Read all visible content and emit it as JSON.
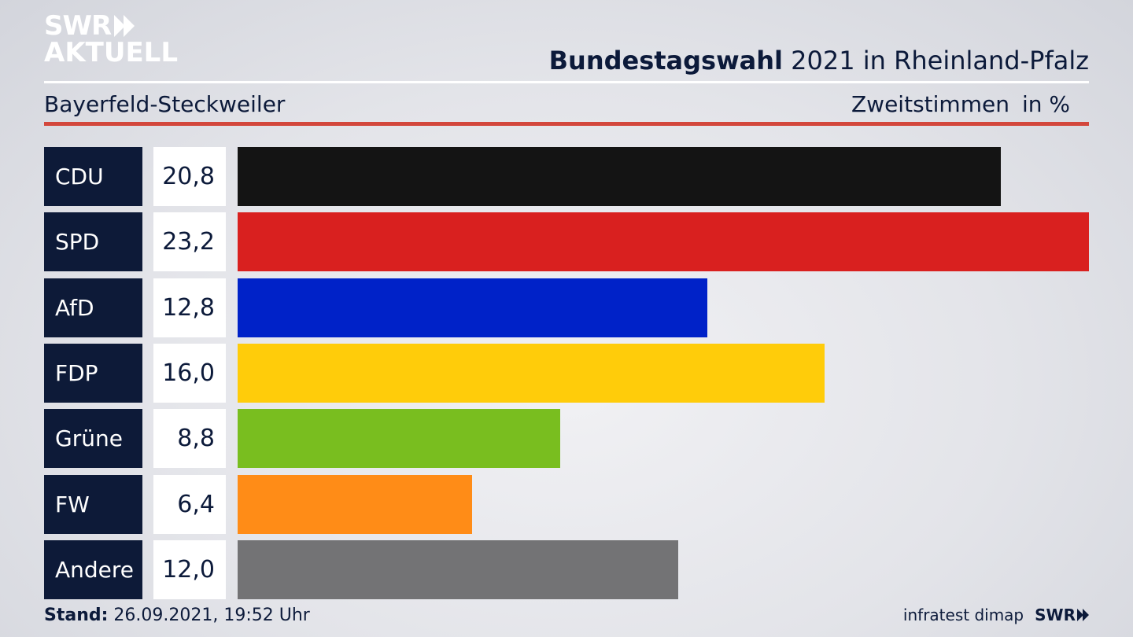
{
  "brand": {
    "logo_line1": "SWR",
    "logo_line2": "AKTUELL"
  },
  "header": {
    "title_bold": "Bundestagswahl",
    "title_rest": "2021 in Rheinland-Pfalz",
    "region": "Bayerfeld-Steckweiler",
    "measure": "Zweitstimmen",
    "unit": "in %"
  },
  "chart_data": {
    "type": "bar",
    "orientation": "horizontal",
    "categories": [
      "CDU",
      "SPD",
      "AfD",
      "FDP",
      "Grüne",
      "FW",
      "Andere"
    ],
    "values": [
      20.8,
      23.2,
      12.8,
      16.0,
      8.8,
      6.4,
      12.0
    ],
    "value_labels": [
      "20,8",
      "23,2",
      "12,8",
      "16,0",
      "8,8",
      "6,4",
      "12,0"
    ],
    "colors": [
      "#141414",
      "#d9201f",
      "#0022c8",
      "#ffcc0a",
      "#79be1f",
      "#ff8c17",
      "#737375"
    ],
    "xlim": [
      0,
      23.2
    ],
    "grid": false,
    "legend": "none"
  },
  "footer": {
    "stand_label": "Stand:",
    "stand_value": "26.09.2021, 19:52 Uhr",
    "source": "infratest dimap",
    "broadcaster": "SWR"
  }
}
